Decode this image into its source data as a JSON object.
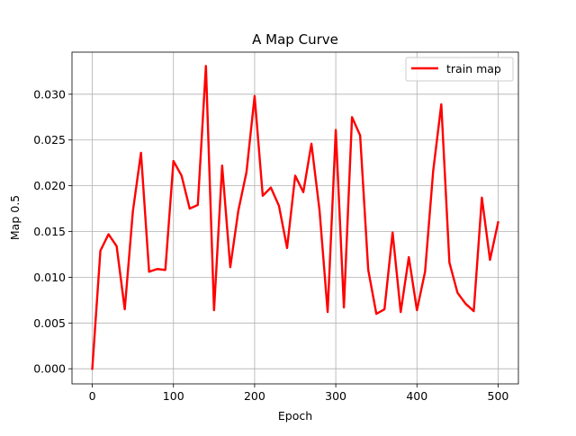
{
  "chart_data": {
    "type": "line",
    "title": "A Map Curve",
    "xlabel": "Epoch",
    "ylabel": "Map 0.5",
    "xlim": [
      -25,
      525
    ],
    "ylim": [
      -0.00165,
      0.0346
    ],
    "xticks": [
      0,
      100,
      200,
      300,
      400,
      500
    ],
    "xtick_labels": [
      "0",
      "100",
      "200",
      "300",
      "400",
      "500"
    ],
    "yticks": [
      0.0,
      0.005,
      0.01,
      0.015,
      0.02,
      0.025,
      0.03
    ],
    "ytick_labels": [
      "0.000",
      "0.005",
      "0.010",
      "0.015",
      "0.020",
      "0.025",
      "0.030"
    ],
    "grid": true,
    "legend_position": "upper right",
    "series": [
      {
        "name": "train map",
        "color": "#ff0000",
        "x": [
          0,
          10,
          20,
          30,
          40,
          50,
          60,
          70,
          80,
          90,
          100,
          110,
          120,
          130,
          140,
          150,
          160,
          170,
          180,
          190,
          200,
          210,
          220,
          230,
          240,
          250,
          260,
          270,
          280,
          290,
          300,
          310,
          320,
          330,
          340,
          350,
          360,
          370,
          380,
          390,
          400,
          410,
          420,
          430,
          440,
          450,
          460,
          470,
          480,
          490,
          500
        ],
        "y": [
          0.0,
          0.0129,
          0.0147,
          0.0134,
          0.0065,
          0.0172,
          0.0236,
          0.0106,
          0.0109,
          0.0108,
          0.0227,
          0.0211,
          0.0175,
          0.0179,
          0.0331,
          0.0064,
          0.0222,
          0.0111,
          0.0173,
          0.0215,
          0.0298,
          0.0189,
          0.0198,
          0.0178,
          0.0132,
          0.0211,
          0.0193,
          0.0246,
          0.0173,
          0.0062,
          0.0261,
          0.0067,
          0.0275,
          0.0255,
          0.0108,
          0.006,
          0.0065,
          0.0149,
          0.0062,
          0.0122,
          0.0064,
          0.0106,
          0.0216,
          0.0289,
          0.0116,
          0.0083,
          0.0071,
          0.0063,
          0.0187,
          0.0119,
          0.016
        ]
      }
    ]
  }
}
